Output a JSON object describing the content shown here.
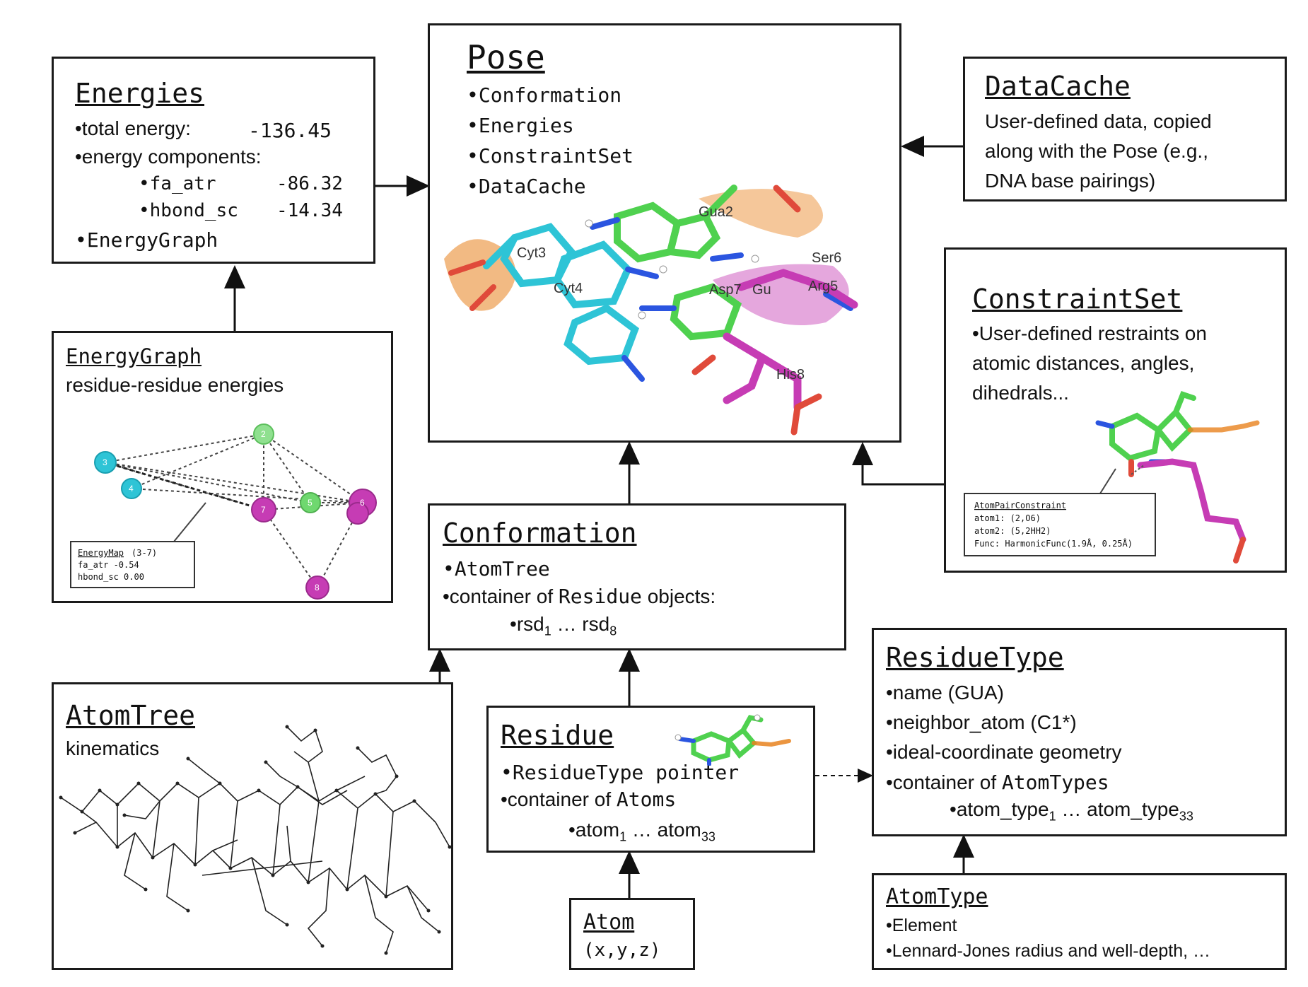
{
  "energies": {
    "title": "Energies",
    "total_label": "•total energy:",
    "total_value": "-136.45",
    "components_label": "•energy components:",
    "fa_atr_label": "•fa_atr",
    "fa_atr_value": "-86.32",
    "hbond_label": "•hbond_sc",
    "hbond_value": "-14.34",
    "graph_item": "•EnergyGraph"
  },
  "pose": {
    "title": "Pose",
    "items": [
      "•Conformation",
      "•Energies",
      "•ConstraintSet",
      "•DataCache"
    ],
    "residue_labels": [
      "Gua2",
      "Cyt3",
      "Cyt4",
      "Ser6",
      "Arg5",
      "Asp7",
      "Gu",
      "His8"
    ]
  },
  "datacache": {
    "title": "DataCache",
    "lines": [
      "User-defined data, copied",
      "along with the Pose (e.g.,",
      "DNA base pairings)"
    ]
  },
  "energygraph": {
    "title": "EnergyGraph",
    "subtitle": "residue-residue energies",
    "node_labels": [
      "3",
      "4",
      "2",
      "7",
      "5",
      "6",
      "8"
    ],
    "map_title": "EnergyMap",
    "map_range": "(3-7)",
    "map_fa_atr": "fa_atr    -0.54",
    "map_hbond": "hbond_sc   0.00"
  },
  "constraintset": {
    "title": "ConstraintSet",
    "lines": [
      "•User-defined restraints on",
      "atomic distances, angles,",
      "dihedrals..."
    ],
    "box_title": "AtomPairConstraint",
    "box_lines": [
      "atom1: (2,O6)",
      "atom2: (5,2HH2)",
      "Func: HarmonicFunc(1.9Å, 0.25Å)"
    ]
  },
  "conformation": {
    "title": "Conformation",
    "item1": "•AtomTree",
    "item2_prefix": "•container of ",
    "item2_code": "Residue",
    "item2_suffix": " objects:",
    "rsd_a": "rsd",
    "rsd_a_sub": "1",
    "rsd_mid": " … rsd",
    "rsd_b_sub": "8",
    "rsd_bullet": "•"
  },
  "atomtree": {
    "title": "AtomTree",
    "subtitle": "kinematics"
  },
  "residue": {
    "title": "Residue",
    "item1": "•ResidueType pointer",
    "item2_prefix": "•container of ",
    "item2_code": "Atoms",
    "atom_bullet": "•",
    "atom_a": "atom",
    "atom_a_sub": "1",
    "atom_mid": " … atom",
    "atom_b_sub": "33"
  },
  "residuetype": {
    "title": "ResidueType",
    "items": [
      "•name (GUA)",
      "•neighbor_atom (C1*)",
      "•ideal-coordinate geometry"
    ],
    "item4_prefix": "•container of ",
    "item4_code": "AtomTypes",
    "at_bullet": "•",
    "at_a": "atom_type",
    "at_a_sub": "1",
    "at_mid": " … atom_type",
    "at_b_sub": "33"
  },
  "atom": {
    "title": "Atom",
    "coords": "(x,y,z)"
  },
  "atomtype": {
    "title": "AtomType",
    "items": [
      "•Element",
      "•Lennard-Jones radius and well-depth, …"
    ]
  },
  "colors": {
    "cyan": "#2ec4d6",
    "green": "#4fd14f",
    "magenta": "#c63cb4",
    "orange": "#e8821e",
    "red": "#e04a3a",
    "blue": "#2b55e0"
  }
}
